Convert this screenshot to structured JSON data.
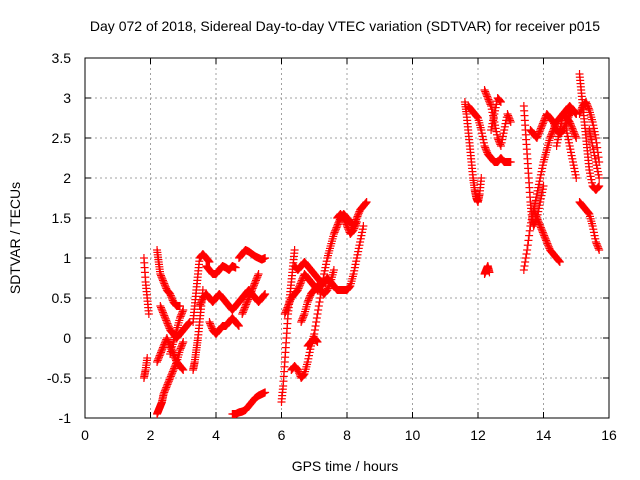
{
  "chart_data": {
    "type": "scatter",
    "title": "Day 072 of 2018, Sidereal Day-to-day VTEC variation (SDTVAR) for receiver p015",
    "xlabel": "GPS time / hours",
    "ylabel": "SDTVAR / TECUs",
    "xlim": [
      0,
      16
    ],
    "ylim": [
      -1,
      3.5
    ],
    "xticks": [
      "0",
      "2",
      "4",
      "6",
      "8",
      "10",
      "12",
      "14",
      "16"
    ],
    "yticks": [
      "-1",
      "-0.5",
      "0",
      "0.5",
      "1",
      "1.5",
      "2",
      "2.5",
      "3",
      "3.5"
    ],
    "grid": true,
    "marker": "+",
    "color": "#ff0000",
    "series": [
      {
        "name": "s1",
        "x": [
          1.8,
          1.85,
          1.9,
          1.95
        ],
        "y": [
          1.0,
          0.7,
          0.5,
          0.3
        ]
      },
      {
        "name": "s2",
        "x": [
          1.8,
          1.85,
          1.9
        ],
        "y": [
          -0.5,
          -0.4,
          -0.25
        ]
      },
      {
        "name": "s3",
        "x": [
          2.2,
          2.25,
          2.3,
          2.4,
          2.5,
          2.6,
          2.7,
          2.8,
          2.9
        ],
        "y": [
          1.1,
          0.95,
          0.8,
          0.7,
          0.6,
          0.55,
          0.45,
          0.4,
          0.4
        ]
      },
      {
        "name": "s4",
        "x": [
          2.2,
          2.25,
          2.3,
          2.35,
          2.4,
          2.5,
          2.6,
          2.7,
          2.8,
          2.9,
          3.0
        ],
        "y": [
          -0.95,
          -0.9,
          -0.85,
          -0.8,
          -0.7,
          -0.6,
          -0.5,
          -0.4,
          -0.3,
          -0.15,
          -0.05
        ]
      },
      {
        "name": "s5",
        "x": [
          2.3,
          2.4,
          2.5,
          2.6,
          2.7,
          2.8,
          2.9,
          3.0,
          3.1,
          3.2
        ],
        "y": [
          0.4,
          0.3,
          0.2,
          0.1,
          0.05,
          0.0,
          0.05,
          0.1,
          0.15,
          0.2
        ]
      },
      {
        "name": "s6",
        "x": [
          2.2,
          2.3,
          2.4,
          2.5,
          2.6,
          2.7,
          2.8,
          2.9,
          3.0
        ],
        "y": [
          -0.3,
          -0.2,
          -0.1,
          0.0,
          -0.1,
          -0.2,
          -0.3,
          -0.35,
          -0.4
        ]
      },
      {
        "name": "s7",
        "x": [
          2.6,
          2.7,
          2.8,
          2.9,
          3.0
        ],
        "y": [
          -0.2,
          -0.05,
          0.1,
          0.25,
          0.35
        ]
      },
      {
        "name": "s8",
        "x": [
          3.3,
          3.35,
          3.4,
          3.45,
          3.5,
          3.55,
          3.6
        ],
        "y": [
          -0.4,
          -0.3,
          -0.15,
          0.0,
          0.2,
          0.4,
          0.6
        ]
      },
      {
        "name": "s9",
        "x": [
          3.3,
          3.35,
          3.4,
          3.45,
          3.5,
          3.6,
          3.7,
          3.8
        ],
        "y": [
          0.2,
          0.4,
          0.6,
          0.8,
          1.0,
          1.05,
          1.0,
          0.95
        ]
      },
      {
        "name": "s10",
        "x": [
          3.5,
          3.6,
          3.7,
          3.8,
          3.9,
          4.0,
          4.1,
          4.2,
          4.3,
          4.4,
          4.5,
          4.6,
          4.7,
          4.8,
          4.9,
          5.0,
          5.1,
          5.2,
          5.3,
          5.4,
          5.5
        ],
        "y": [
          0.4,
          0.5,
          0.55,
          0.5,
          0.45,
          0.5,
          0.55,
          0.5,
          0.45,
          0.4,
          0.35,
          0.4,
          0.45,
          0.5,
          0.55,
          0.6,
          0.55,
          0.5,
          0.45,
          0.5,
          0.55
        ]
      },
      {
        "name": "s11",
        "x": [
          3.7,
          3.8,
          3.9,
          4.0,
          4.1,
          4.2,
          4.3,
          4.4,
          4.5,
          4.6
        ],
        "y": [
          0.9,
          0.85,
          0.8,
          0.8,
          0.85,
          0.9,
          0.88,
          0.85,
          0.9,
          0.88
        ]
      },
      {
        "name": "s12",
        "x": [
          3.8,
          3.9,
          4.0,
          4.1,
          4.2,
          4.3,
          4.4,
          4.5,
          4.6,
          4.7
        ],
        "y": [
          0.2,
          0.1,
          0.05,
          0.1,
          0.15,
          0.15,
          0.2,
          0.25,
          0.2,
          0.15
        ]
      },
      {
        "name": "s13",
        "x": [
          4.5,
          4.6,
          4.7,
          4.8,
          4.9,
          5.0,
          5.1,
          5.2,
          5.3,
          5.4,
          5.5
        ],
        "y": [
          -0.95,
          -0.95,
          -0.93,
          -0.92,
          -0.9,
          -0.85,
          -0.8,
          -0.75,
          -0.72,
          -0.7,
          -0.68
        ]
      },
      {
        "name": "s14",
        "x": [
          4.7,
          4.8,
          4.9,
          5.0,
          5.1,
          5.2,
          5.3,
          5.4,
          5.5
        ],
        "y": [
          1.0,
          1.05,
          1.1,
          1.08,
          1.05,
          1.02,
          1.0,
          0.98,
          1.0
        ]
      },
      {
        "name": "s15",
        "x": [
          4.8,
          4.9,
          5.0,
          5.1,
          5.2,
          5.3
        ],
        "y": [
          0.3,
          0.4,
          0.5,
          0.6,
          0.7,
          0.8
        ]
      },
      {
        "name": "s16",
        "x": [
          6.0,
          6.05,
          6.1,
          6.15,
          6.2,
          6.25,
          6.3,
          6.35,
          6.4
        ],
        "y": [
          -0.8,
          -0.6,
          -0.3,
          0.0,
          0.3,
          0.5,
          0.7,
          0.9,
          1.1
        ]
      },
      {
        "name": "s17",
        "x": [
          6.1,
          6.2,
          6.3,
          6.4,
          6.5,
          6.6,
          6.7,
          6.8,
          6.9,
          7.0,
          7.1,
          7.2,
          7.3,
          7.4,
          7.5,
          7.6,
          7.7,
          7.8,
          7.9,
          8.0,
          8.1,
          8.2,
          8.3,
          8.4,
          8.5
        ],
        "y": [
          0.3,
          0.4,
          0.5,
          0.55,
          0.6,
          0.7,
          0.8,
          0.75,
          0.7,
          0.65,
          0.6,
          0.65,
          0.7,
          0.75,
          0.7,
          0.65,
          0.6,
          0.6,
          0.6,
          0.6,
          0.65,
          0.8,
          1.0,
          1.2,
          1.4
        ]
      },
      {
        "name": "s18",
        "x": [
          6.3,
          6.4,
          6.5,
          6.6,
          6.7,
          6.8,
          6.9,
          7.0,
          7.1,
          7.2,
          7.3,
          7.4,
          7.5,
          7.6,
          7.7,
          7.8,
          7.9,
          8.0,
          8.1,
          8.2,
          8.3,
          8.4,
          8.5,
          8.6
        ],
        "y": [
          -0.4,
          -0.35,
          -0.4,
          -0.5,
          -0.45,
          -0.3,
          -0.1,
          0.05,
          0.3,
          0.55,
          0.8,
          1.0,
          1.15,
          1.3,
          1.4,
          1.5,
          1.55,
          1.5,
          1.45,
          1.4,
          1.5,
          1.6,
          1.65,
          1.7
        ]
      },
      {
        "name": "s19",
        "x": [
          6.4,
          6.5,
          6.6,
          6.7,
          6.8,
          6.9,
          7.0,
          7.1,
          7.2
        ],
        "y": [
          0.9,
          0.85,
          0.9,
          0.95,
          0.9,
          0.85,
          0.8,
          0.75,
          0.7
        ]
      },
      {
        "name": "s20",
        "x": [
          6.6,
          6.7,
          6.8,
          6.9,
          7.0,
          7.1,
          7.2,
          7.3,
          7.4,
          7.5,
          7.6
        ],
        "y": [
          0.2,
          0.3,
          0.45,
          0.55,
          0.6,
          0.65,
          0.6,
          0.55,
          0.6,
          0.7,
          0.85
        ]
      },
      {
        "name": "s21",
        "x": [
          6.8,
          6.9,
          7.0,
          7.1
        ],
        "y": [
          -0.1,
          -0.05,
          0.0,
          -0.05
        ]
      },
      {
        "name": "s22",
        "x": [
          7.7,
          7.8,
          7.9,
          8.0,
          8.1,
          8.2,
          8.3
        ],
        "y": [
          1.5,
          1.55,
          1.5,
          1.4,
          1.3,
          1.35,
          1.45
        ]
      },
      {
        "name": "s23",
        "x": [
          11.6,
          11.65,
          11.7,
          11.75,
          11.8,
          11.85,
          11.9,
          11.95,
          12.0,
          12.05,
          12.1
        ],
        "y": [
          2.95,
          2.8,
          2.6,
          2.4,
          2.2,
          2.0,
          1.85,
          1.75,
          1.7,
          1.8,
          2.0
        ]
      },
      {
        "name": "s24",
        "x": [
          11.7,
          11.8,
          11.9,
          12.0,
          12.1,
          12.2,
          12.3,
          12.4,
          12.5,
          12.6,
          12.7,
          12.8,
          12.9,
          13.0
        ],
        "y": [
          2.9,
          2.85,
          2.8,
          2.75,
          2.6,
          2.4,
          2.3,
          2.25,
          2.2,
          2.2,
          2.25,
          2.2,
          2.2,
          2.2
        ]
      },
      {
        "name": "s25",
        "x": [
          12.2,
          12.25,
          12.3,
          12.35
        ],
        "y": [
          0.8,
          0.85,
          0.9,
          0.82
        ]
      },
      {
        "name": "s26",
        "x": [
          12.2,
          12.3,
          12.4,
          12.5,
          12.6,
          12.7,
          12.8,
          12.9,
          13.0
        ],
        "y": [
          3.1,
          3.0,
          2.9,
          2.7,
          2.5,
          2.4,
          2.6,
          2.8,
          2.7
        ]
      },
      {
        "name": "s27",
        "x": [
          12.4,
          12.5,
          12.6,
          12.7
        ],
        "y": [
          2.6,
          2.8,
          3.0,
          2.95
        ]
      },
      {
        "name": "s28",
        "x": [
          13.4,
          13.45,
          13.5,
          13.55,
          13.6,
          13.65,
          13.7,
          13.8,
          13.9,
          14.0
        ],
        "y": [
          2.9,
          2.6,
          2.3,
          2.0,
          1.7,
          1.5,
          1.4,
          1.5,
          1.7,
          1.9
        ]
      },
      {
        "name": "s29",
        "x": [
          13.4,
          13.5,
          13.6,
          13.7,
          13.8,
          13.9,
          14.0,
          14.1,
          14.2,
          14.3,
          14.4,
          14.5,
          14.6,
          14.7,
          14.8,
          14.9,
          15.0
        ],
        "y": [
          0.85,
          1.1,
          1.4,
          1.6,
          1.8,
          2.0,
          2.2,
          2.35,
          2.5,
          2.6,
          2.7,
          2.75,
          2.8,
          2.75,
          2.7,
          2.6,
          2.5
        ]
      },
      {
        "name": "s30",
        "x": [
          13.6,
          13.7,
          13.8,
          13.9,
          14.0,
          14.1,
          14.2,
          14.3,
          14.4,
          14.5,
          14.6,
          14.7,
          14.8,
          14.9,
          15.0
        ],
        "y": [
          2.6,
          2.55,
          2.5,
          2.6,
          2.7,
          2.8,
          2.75,
          2.7,
          2.6,
          2.55,
          2.6,
          2.7,
          2.8,
          2.85,
          2.8
        ]
      },
      {
        "name": "s31",
        "x": [
          13.7,
          13.8,
          13.9,
          14.0,
          14.1,
          14.2,
          14.3,
          14.4,
          14.5
        ],
        "y": [
          1.6,
          1.5,
          1.4,
          1.3,
          1.2,
          1.1,
          1.05,
          1.0,
          0.95
        ]
      },
      {
        "name": "s32",
        "x": [
          14.4,
          14.5,
          14.6,
          14.7,
          14.8,
          14.9,
          15.0
        ],
        "y": [
          2.4,
          2.6,
          2.8,
          2.85,
          2.9,
          2.85,
          2.8
        ]
      },
      {
        "name": "s33",
        "x": [
          14.7,
          14.8,
          14.9,
          15.0
        ],
        "y": [
          2.6,
          2.4,
          2.2,
          2.0
        ]
      },
      {
        "name": "s34",
        "x": [
          15.1,
          15.15,
          15.2,
          15.25,
          15.3,
          15.35,
          15.4,
          15.5,
          15.6,
          15.7
        ],
        "y": [
          3.3,
          3.1,
          2.9,
          2.7,
          2.5,
          2.3,
          2.1,
          1.9,
          1.85,
          1.9
        ]
      },
      {
        "name": "s35",
        "x": [
          15.1,
          15.2,
          15.3,
          15.4,
          15.5,
          15.6,
          15.7
        ],
        "y": [
          2.8,
          2.9,
          2.95,
          2.85,
          2.7,
          2.5,
          2.2
        ]
      },
      {
        "name": "s36",
        "x": [
          15.1,
          15.2,
          15.3,
          15.4,
          15.5,
          15.6,
          15.7
        ],
        "y": [
          1.7,
          1.65,
          1.6,
          1.55,
          1.4,
          1.2,
          1.1
        ]
      },
      {
        "name": "s37",
        "x": [
          15.4,
          15.5,
          15.6,
          15.7
        ],
        "y": [
          2.6,
          2.4,
          2.2,
          2.0
        ]
      }
    ]
  }
}
